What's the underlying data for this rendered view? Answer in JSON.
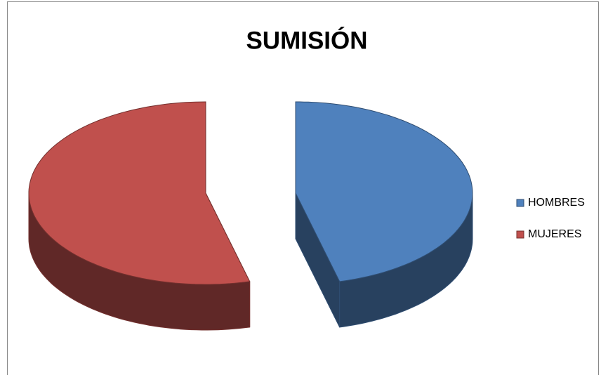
{
  "chart_data": {
    "type": "pie3d",
    "title": "SUMISIÓN",
    "categories": [
      "HOMBRES",
      "MUJERES"
    ],
    "values": [
      46,
      54
    ],
    "colors": [
      "#4f81bd",
      "#c0504d"
    ],
    "legend": "right",
    "exploded": true
  }
}
